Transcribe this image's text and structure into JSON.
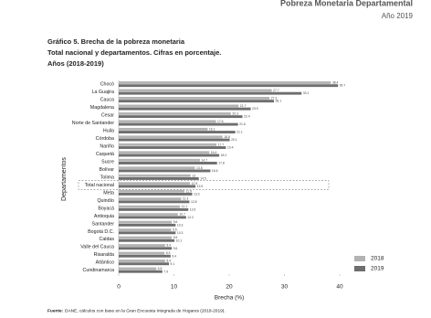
{
  "header": {
    "title": "Pobreza Monetaria Departamental",
    "subtitle": "Año 2019"
  },
  "chart_data": {
    "type": "barh",
    "title": "Gráfico 5. Brecha de la pobreza monetaria",
    "subtitle": "Total nacional y departamentos. Cifras en porcentaje.",
    "period": "Años (2018-2019)",
    "ylabel": "Departamentos",
    "xlabel": "Brecha (%)",
    "categories": [
      "Chocó",
      "La Guajira",
      "Cauca",
      "Magdalena",
      "Cesar",
      "Norte de Santander",
      "Huila",
      "Córdoba",
      "Nariño",
      "Caquetá",
      "Sucre",
      "Bolívar",
      "Tolima",
      "Total nacional",
      "Meta",
      "Quindío",
      "Boyacá",
      "Antioquia",
      "Santander",
      "Bogotá D.C.",
      "Caldas",
      "Valle del Cauca",
      "Risaralda",
      "Atlántico",
      "Cundinamarca"
    ],
    "series": [
      {
        "name": "2018",
        "color": "#b3b3b3",
        "values": [
          38.4,
          27.7,
          27.3,
          21.7,
          20.3,
          17.6,
          16.1,
          18.8,
          17.7,
          16.4,
          14.7,
          13.8,
          13.0,
          12.9,
          11.9,
          11.3,
          11.1,
          10.7,
          9.6,
          9.5,
          9.6,
          8.4,
          8.3,
          8.4,
          6.8
        ]
      },
      {
        "name": "2019",
        "color": "#6e6e6e",
        "values": [
          39.7,
          33.1,
          28.1,
          23.9,
          22.4,
          21.6,
          21.1,
          20.1,
          19.4,
          18.2,
          17.8,
          16.6,
          14.5,
          13.9,
          13.3,
          12.8,
          12.6,
          12.2,
          10.3,
          10.3,
          10.1,
          9.6,
          9.4,
          9.1,
          7.9
        ]
      }
    ],
    "xlim": [
      0,
      40
    ],
    "xticks": [
      0,
      10,
      20,
      30,
      40
    ],
    "grid": false,
    "legend": "bottom-right",
    "highlight": "Total nacional"
  },
  "source": {
    "label": "Fuente:",
    "text": "DANE, cálculos con base en la Gran Encuesta Integrada de Hogares (2018-2019)."
  }
}
